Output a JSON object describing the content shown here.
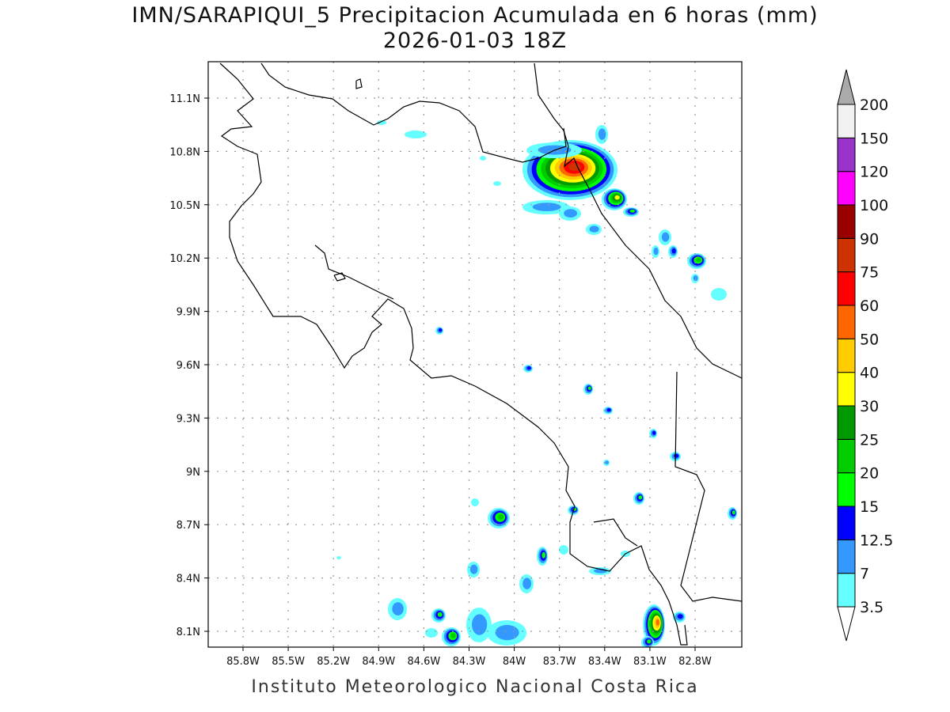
{
  "title": "IMN/SARAPIQUI_5 Precipitacion Acumulada en 6 horas (mm)",
  "subtitle": "2026-01-03 18Z",
  "footer": "Instituto Meteorologico Nacional Costa Rica",
  "lon_ticks": [
    "85.8W",
    "85.5W",
    "85.2W",
    "84.9W",
    "84.6W",
    "84.3W",
    "84W",
    "83.7W",
    "83.4W",
    "83.1W",
    "82.8W"
  ],
  "lat_ticks": [
    "11.1N",
    "10.8N",
    "10.5N",
    "10.2N",
    "9.9N",
    "9.6N",
    "9.3N",
    "9N",
    "8.7N",
    "8.4N",
    "8.1N"
  ],
  "colorbar": {
    "units": "mm",
    "labels": [
      "3.5",
      "7",
      "12.5",
      "15",
      "20",
      "25",
      "30",
      "40",
      "50",
      "60",
      "75",
      "90",
      "100",
      "120",
      "150",
      "200"
    ],
    "colors": [
      "#66ffff",
      "#3399ff",
      "#0000ff",
      "#00ff00",
      "#00cc00",
      "#009900",
      "#ffff00",
      "#ffcc00",
      "#ff6600",
      "#ff0000",
      "#cc3300",
      "#990000",
      "#ff00ff",
      "#9933cc",
      "#f2f2f2"
    ],
    "over_color": "#aaaaaa",
    "under_color": "#ffffff"
  }
}
